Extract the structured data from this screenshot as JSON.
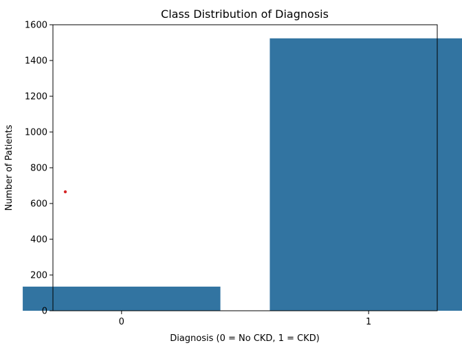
{
  "chart_data": {
    "type": "bar",
    "title": "Class Distribution of Diagnosis",
    "xlabel": "Diagnosis (0 = No CKD, 1 = CKD)",
    "ylabel": "Number of Patients",
    "categories": [
      "0",
      "1"
    ],
    "values": [
      135,
      1524
    ],
    "ylim": [
      0,
      1600
    ],
    "yticks": [
      0,
      200,
      400,
      600,
      800,
      1000,
      1200,
      1400,
      1600
    ],
    "grid": false,
    "legend": "none",
    "bar_color": "#3274a1",
    "marker_color": "#d62728"
  }
}
